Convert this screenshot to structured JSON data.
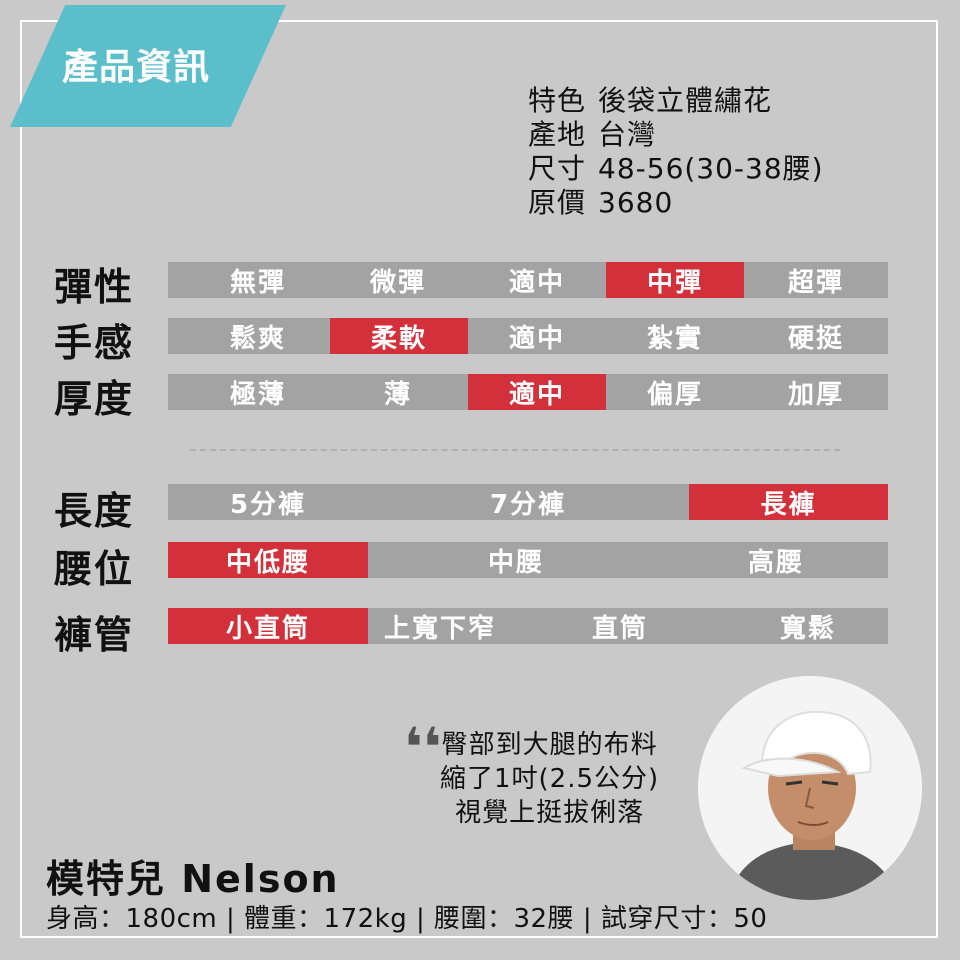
{
  "section_title": "產品資訊",
  "info": {
    "feature": {
      "label": "特色",
      "value": "後袋立體繡花"
    },
    "origin": {
      "label": "產地",
      "value": "台灣"
    },
    "size": {
      "label": "尺寸",
      "value": "48-56(30-38腰)"
    },
    "price": {
      "label": "原價",
      "value": "3680"
    }
  },
  "scales": {
    "elasticity": {
      "label": "彈性",
      "options": [
        "無彈",
        "微彈",
        "適中",
        "中彈",
        "超彈"
      ],
      "selected": "中彈"
    },
    "feel": {
      "label": "手感",
      "options": [
        "鬆爽",
        "柔軟",
        "適中",
        "紮實",
        "硬挺"
      ],
      "selected": "柔軟"
    },
    "thickness": {
      "label": "厚度",
      "options": [
        "極薄",
        "薄",
        "適中",
        "偏厚",
        "加厚"
      ],
      "selected": "適中"
    },
    "length": {
      "label": "長度",
      "options": [
        "5分褲",
        "7分褲",
        "長褲"
      ],
      "selected": "長褲"
    },
    "waist": {
      "label": "腰位",
      "options": [
        "中低腰",
        "中腰",
        "高腰"
      ],
      "selected": "中低腰"
    },
    "leg": {
      "label": "褲管",
      "options": [
        "小直筒",
        "上寬下窄",
        "直筒",
        "寬鬆"
      ],
      "selected": "小直筒"
    }
  },
  "colors": {
    "active": "#d2303a",
    "inactive": "#a3a3a3",
    "banner": "#5bbfcb",
    "background": "#c9c9c9"
  },
  "quote": {
    "mark": "❛❛",
    "lines": [
      "臀部到大腿的布料",
      "縮了1吋(2.5公分)",
      "視覺上挺拔俐落"
    ]
  },
  "model": {
    "name": "模特兒 Nelson",
    "stats": "身高：180cm | 體重：172kg | 腰圍：32腰 | 試穿尺寸：50"
  }
}
